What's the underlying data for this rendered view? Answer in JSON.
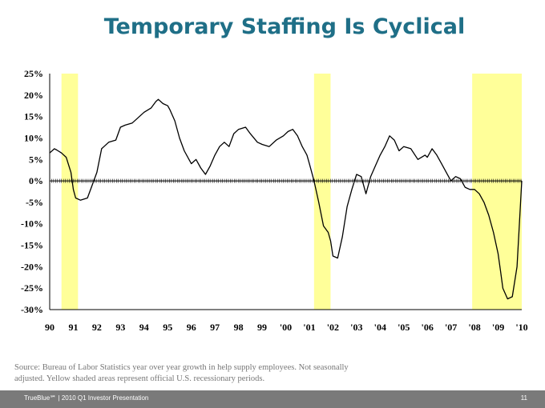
{
  "title": "Temporary Staffing Is Cyclical",
  "source_note": "Source: Bureau of Labor Statistics year over year growth in help supply employees. Not seasonally adjusted. Yellow shaded areas represent official U.S. recessionary periods.",
  "footer": {
    "left": "TrueBlue℠ | 2010 Q1 Investor Presentation",
    "page": "11"
  },
  "colors": {
    "title": "#1f6f87",
    "line": "#000000",
    "recession": "#ffff99",
    "footer_bg": "#7a7a7a"
  },
  "chart_data": {
    "type": "line",
    "title": "",
    "xlabel": "",
    "ylabel": "",
    "xlim": [
      1990,
      2010
    ],
    "ylim": [
      -30,
      25
    ],
    "x_ticks": [
      1990,
      1991,
      1992,
      1993,
      1994,
      1995,
      1996,
      1997,
      1998,
      1999,
      2000,
      2001,
      2002,
      2003,
      2004,
      2005,
      2006,
      2007,
      2008,
      2009,
      2010
    ],
    "x_tick_labels": [
      "90",
      "91",
      "92",
      "93",
      "94",
      "95",
      "96",
      "97",
      "98",
      "99",
      "'00",
      "'01",
      "'02",
      "'03",
      "'04",
      "'05",
      "'06",
      "'07",
      "'08",
      "'09",
      "'10"
    ],
    "y_ticks": [
      25,
      20,
      15,
      10,
      5,
      0,
      -5,
      -10,
      -15,
      -20,
      -25,
      -30
    ],
    "y_tick_labels": [
      "25%",
      "20%",
      "15%",
      "10%",
      "5%",
      "0%",
      "-5%",
      "-10%",
      "-15%",
      "-20%",
      "-25%",
      "-30%"
    ],
    "recessions": [
      {
        "start": 1990.5,
        "end": 1991.2
      },
      {
        "start": 2001.2,
        "end": 2001.9
      },
      {
        "start": 2007.9,
        "end": 2010.0
      }
    ],
    "series": [
      {
        "name": "Help supply employment YoY growth",
        "x": [
          1990.0,
          1990.2,
          1990.3,
          1990.5,
          1990.7,
          1990.9,
          1991.0,
          1991.1,
          1991.3,
          1991.6,
          1991.8,
          1992.0,
          1992.2,
          1992.5,
          1992.8,
          1993.0,
          1993.2,
          1993.5,
          1993.7,
          1994.0,
          1994.3,
          1994.5,
          1994.6,
          1994.8,
          1995.0,
          1995.1,
          1995.3,
          1995.5,
          1995.7,
          1995.9,
          1996.0,
          1996.1,
          1996.2,
          1996.4,
          1996.6,
          1996.8,
          1997.0,
          1997.2,
          1997.4,
          1997.6,
          1997.8,
          1998.0,
          1998.3,
          1998.5,
          1998.8,
          1999.0,
          1999.3,
          1999.6,
          1999.9,
          2000.1,
          2000.3,
          2000.5,
          2000.7,
          2000.9,
          2001.0,
          2001.2,
          2001.4,
          2001.6,
          2001.8,
          2001.9,
          2002.0,
          2002.2,
          2002.4,
          2002.6,
          2002.8,
          2003.0,
          2003.2,
          2003.4,
          2003.6,
          2003.8,
          2004.0,
          2004.2,
          2004.4,
          2004.6,
          2004.8,
          2005.0,
          2005.3,
          2005.6,
          2005.9,
          2006.0,
          2006.2,
          2006.4,
          2006.6,
          2006.8,
          2007.0,
          2007.2,
          2007.4,
          2007.6,
          2007.8,
          2008.0,
          2008.2,
          2008.4,
          2008.6,
          2008.8,
          2009.0,
          2009.1,
          2009.2,
          2009.4,
          2009.6,
          2009.8,
          2010.0
        ],
        "values": [
          6.5,
          7.5,
          7.2,
          6.5,
          5.5,
          2.0,
          -2.0,
          -4.0,
          -4.5,
          -4.0,
          -1.0,
          2.0,
          7.5,
          9.0,
          9.5,
          12.5,
          13.0,
          13.5,
          14.5,
          16.0,
          17.0,
          18.5,
          19.0,
          18.0,
          17.5,
          16.5,
          14.0,
          10.0,
          7.0,
          5.0,
          4.0,
          4.5,
          5.0,
          3.0,
          1.5,
          3.5,
          6.0,
          8.0,
          9.0,
          8.0,
          11.0,
          12.0,
          12.5,
          11.0,
          9.0,
          8.5,
          8.0,
          9.5,
          10.5,
          11.5,
          12.0,
          10.5,
          8.0,
          6.0,
          4.0,
          0.0,
          -5.0,
          -10.5,
          -12.0,
          -14.0,
          -17.5,
          -18.0,
          -13.0,
          -6.0,
          -2.0,
          1.5,
          1.0,
          -3.0,
          1.0,
          3.5,
          6.0,
          8.0,
          10.5,
          9.5,
          7.0,
          8.0,
          7.5,
          5.0,
          6.0,
          5.5,
          7.5,
          6.0,
          4.0,
          2.0,
          0.0,
          1.0,
          0.5,
          -1.5,
          -2.0,
          -2.0,
          -3.0,
          -5.0,
          -8.0,
          -12.0,
          -17.0,
          -21.0,
          -25.0,
          -27.5,
          -27.0,
          -20.0,
          0.0
        ]
      }
    ]
  }
}
